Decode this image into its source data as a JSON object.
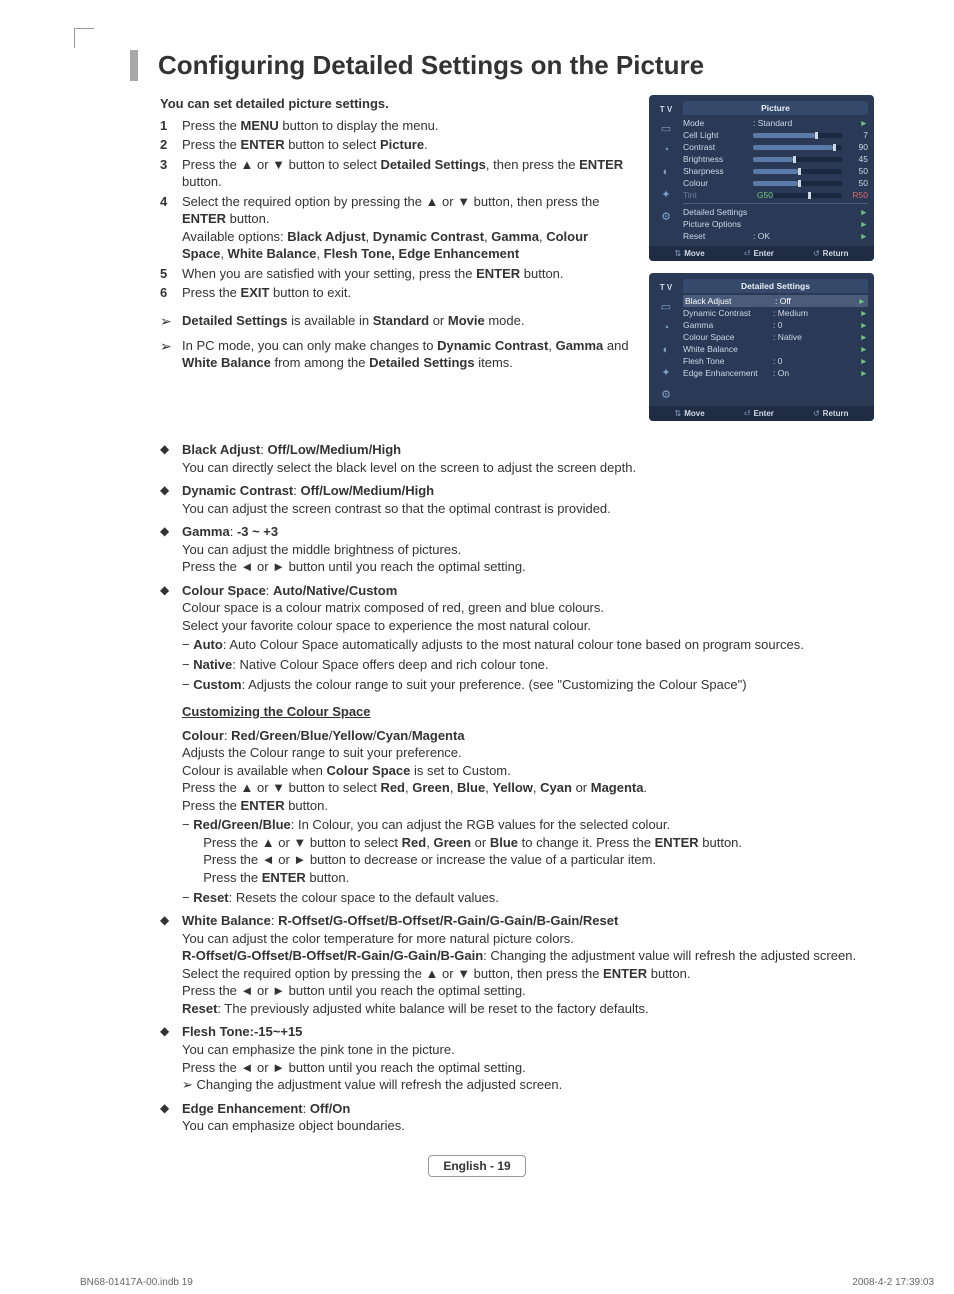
{
  "page": {
    "title": "Configuring Detailed Settings on the Picture",
    "intro": "You can set detailed picture settings.",
    "steps": [
      {
        "n": "1",
        "html": "Press the <b>MENU</b> button to display the menu."
      },
      {
        "n": "2",
        "html": "Press the <b>ENTER</b> button to select <b>Picture</b>."
      },
      {
        "n": "3",
        "html": "Press the ▲ or ▼ button to select <b>Detailed Settings</b>, then press the <b>ENTER</b> button."
      },
      {
        "n": "4",
        "html": "Select the required option by pressing the ▲ or ▼ button, then press the <b>ENTER</b> button.<br>Available options: <b>Black Adjust</b>, <b>Dynamic Contrast</b>, <b>Gamma</b>, <b>Colour Space</b>, <b>White Balance</b>, <b>Flesh Tone, Edge Enhancement</b>"
      },
      {
        "n": "5",
        "html": "When you are satisfied with your setting, press the <b>ENTER</b> button."
      },
      {
        "n": "6",
        "html": "Press the <b>EXIT</b> button to exit."
      }
    ],
    "notes": [
      {
        "html": "<b>Detailed Settings</b> is available in <b>Standard</b> or <b>Movie</b> mode."
      },
      {
        "html": "In PC mode, you can only make changes to <b>Dynamic Contrast</b>, <b>Gamma</b> and <b>White Balance</b> from among the <b>Detailed Settings</b> items."
      }
    ],
    "bullets": [
      {
        "lead": "<b>Black Adjust</b>: <b>Off/Low/Medium/High</b>",
        "body": "You can directly select the black level on the screen to adjust the screen depth."
      },
      {
        "lead": "<b>Dynamic Contrast</b>: <b>Off/Low/Medium/High</b>",
        "body": "You can adjust the screen contrast so that the optimal contrast is provided."
      },
      {
        "lead": "<b>Gamma</b>: <b>-3 ~ +3</b>",
        "body": "You can adjust the middle brightness of pictures.<br>Press the ◄ or ► button until you reach the optimal setting."
      },
      {
        "lead": "<b>Colour Space</b>: <b>Auto/Native/Custom</b>",
        "body": "Colour space is a colour matrix composed of red, green and blue colours.<br>Select your favorite colour space to experience the most natural colour.",
        "dashes": [
          "− <b>Auto</b>: Auto Colour Space automatically adjusts to the most natural colour tone based on program sources.",
          "− <b>Native</b>: Native Colour Space offers deep and rich colour tone.",
          "− <b>Custom</b>: Adjusts the colour range to suit your preference. (see \"Customizing the Colour Space\")"
        ],
        "subhead": "Customizing the Colour Space",
        "sub_body": "<b>Colour</b>: <b>Red</b>/<b>Green</b>/<b>Blue</b>/<b>Yellow</b>/<b>Cyan</b>/<b>Magenta</b><br>Adjusts the Colour range to suit your preference.<br>Colour is available when <b>Colour Space</b> is set to Custom.<br>Press the ▲ or ▼ button to select <b>Red</b>, <b>Green</b>, <b>Blue</b>, <b>Yellow</b>, <b>Cyan</b> or <b>Magenta</b>.<br>Press the <b>ENTER</b> button.",
        "sub_dashes": [
          "− <b>Red/Green/Blue</b>: In Colour, you can adjust the RGB values for the selected colour.<br>&nbsp;&nbsp;Press the ▲ or ▼ button to select <b>Red</b>, <b>Green</b> or <b>Blue</b> to change it. Press the <b>ENTER</b> button.<br>&nbsp;&nbsp;Press the ◄ or ► button to decrease or increase the value of a particular item.<br>&nbsp;&nbsp;Press the <b>ENTER</b> button.",
          "− <b>Reset</b>: Resets the colour space to the default values."
        ]
      },
      {
        "lead": "<b>White Balance</b>: <b>R-Offset/G-Offset/B-Offset/R-Gain/G-Gain/B-Gain/Reset</b>",
        "body": "You can adjust the color temperature for more natural picture colors.<br><b>R-Offset/G-Offset/B-Offset/R-Gain/G-Gain/B-Gain</b>: Changing the adjustment value will refresh the adjusted screen.<br>Select the required option by pressing the ▲ or ▼ button, then press the <b>ENTER</b> button.<br>Press the ◄ or ► button until you reach the optimal setting.<br><b>Reset</b>: The previously adjusted white balance will be reset to the factory defaults."
      },
      {
        "lead": "<b>Flesh Tone:-15~+15</b>",
        "body": "You can emphasize the pink tone in the picture.<br>Press the ◄ or ► button until you reach the optimal setting.<br><span class='glyph'>➢</span> Changing the adjustment value will refresh the adjusted screen."
      },
      {
        "lead": "<b>Edge Enhancement</b>: <b>Off/On</b>",
        "body": "You can emphasize object boundaries."
      }
    ]
  },
  "osd1": {
    "title": "Picture",
    "tv": "T V",
    "rows": [
      {
        "label": "Mode",
        "value": ": Standard",
        "type": "text",
        "caret": true
      },
      {
        "label": "Cell Light",
        "type": "slider",
        "fill": 70,
        "val": "7"
      },
      {
        "label": "Contrast",
        "type": "slider",
        "fill": 90,
        "val": "90"
      },
      {
        "label": "Brightness",
        "type": "slider",
        "fill": 45,
        "val": "45"
      },
      {
        "label": "Sharpness",
        "type": "slider",
        "fill": 50,
        "val": "50"
      },
      {
        "label": "Colour",
        "type": "slider",
        "fill": 50,
        "val": "50"
      },
      {
        "label": "Tint",
        "type": "tint",
        "g": "G50",
        "r": "R50",
        "dim": true
      },
      {
        "sep": true
      },
      {
        "label": "Detailed Settings",
        "type": "text",
        "value": "",
        "caret": true
      },
      {
        "label": "Picture Options",
        "type": "text",
        "value": "",
        "caret": true
      },
      {
        "label": "Reset",
        "type": "text",
        "value": ": OK",
        "caret": true
      }
    ],
    "footer": {
      "move": "Move",
      "enter": "Enter",
      "ret": "Return"
    }
  },
  "osd2": {
    "title": "Detailed Settings",
    "tv": "T V",
    "rows": [
      {
        "label": "Black Adjust",
        "value": ": Off",
        "hl": true
      },
      {
        "label": "Dynamic Contrast",
        "value": ": Medium"
      },
      {
        "label": "Gamma",
        "value": ":   0"
      },
      {
        "label": "Colour Space",
        "value": ": Native"
      },
      {
        "label": "White Balance",
        "value": ""
      },
      {
        "label": "Flesh Tone",
        "value": ":   0"
      },
      {
        "label": "Edge Enhancement",
        "value": ": On"
      }
    ],
    "footer": {
      "move": "Move",
      "enter": "Enter",
      "ret": "Return"
    }
  },
  "footer": {
    "pg": "English - 19"
  },
  "meta": {
    "left": "BN68-01417A-00.indb   19",
    "right": "2008-4-2   17:39:03"
  }
}
